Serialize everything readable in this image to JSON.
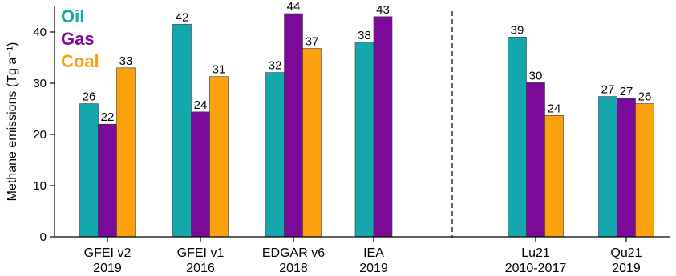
{
  "chart_data": {
    "type": "bar",
    "ylabel": "Methane emissions (Tg a⁻¹)",
    "ylim": [
      0,
      45
    ],
    "yticks": [
      0,
      10,
      20,
      30,
      40
    ],
    "legend_position": "top-left",
    "series": [
      {
        "name": "Oil",
        "color": "#14a7ad"
      },
      {
        "name": "Gas",
        "color": "#7b0a98"
      },
      {
        "name": "Coal",
        "color": "#fba10e"
      }
    ],
    "groups": [
      {
        "label": "GFEI v2",
        "sublabel": "2019",
        "values": [
          {
            "series": "Oil",
            "value": 26,
            "label": "26"
          },
          {
            "series": "Gas",
            "value": 22,
            "label": "22"
          },
          {
            "series": "Coal",
            "value": 33,
            "label": "33"
          }
        ]
      },
      {
        "label": "GFEI v1",
        "sublabel": "2016",
        "values": [
          {
            "series": "Oil",
            "value": 41.5,
            "label": "42"
          },
          {
            "series": "Gas",
            "value": 24.4,
            "label": "24"
          },
          {
            "series": "Coal",
            "value": 31.3,
            "label": "31"
          }
        ]
      },
      {
        "label": "EDGAR v6",
        "sublabel": "2018",
        "values": [
          {
            "series": "Oil",
            "value": 32.1,
            "label": "32"
          },
          {
            "series": "Gas",
            "value": 43.6,
            "label": "44"
          },
          {
            "series": "Coal",
            "value": 36.8,
            "label": "37"
          }
        ]
      },
      {
        "label": "IEA",
        "sublabel": "2019",
        "values": [
          {
            "series": "Oil",
            "value": 38,
            "label": "38"
          },
          {
            "series": "Gas",
            "value": 43,
            "label": "43"
          }
        ]
      },
      {
        "label": "Lu21",
        "sublabel": "2010-2017",
        "values": [
          {
            "series": "Oil",
            "value": 39,
            "label": "39"
          },
          {
            "series": "Gas",
            "value": 30.1,
            "label": "30"
          },
          {
            "series": "Coal",
            "value": 23.7,
            "label": "24"
          }
        ]
      },
      {
        "label": "Qu21",
        "sublabel": "2019",
        "values": [
          {
            "series": "Oil",
            "value": 27.4,
            "label": "27"
          },
          {
            "series": "Gas",
            "value": 27,
            "label": "27"
          },
          {
            "series": "Coal",
            "value": 26,
            "label": "26"
          }
        ]
      }
    ]
  }
}
